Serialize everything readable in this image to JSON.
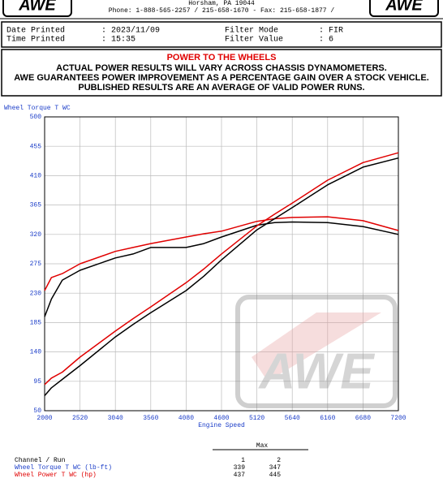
{
  "header": {
    "logo_left": "AWE",
    "logo_right": "AWE",
    "address": "Horsham, PA  19044",
    "contact": "Phone: 1-888-565-2257 / 215-658-1670 - Fax: 215-658-1877 /"
  },
  "info": {
    "date_label": "Date Printed",
    "date_value": "2023/11/09",
    "time_label": "Time Printed",
    "time_value": "15:35",
    "filter_mode_label": "Filter Mode",
    "filter_mode_value": "FIR",
    "filter_value_label": "Filter Value",
    "filter_value_value": "6",
    "separator": ":"
  },
  "notice": {
    "title": "POWER TO THE WHEELS",
    "lines": [
      "ACTUAL POWER RESULTS WILL VARY ACROSS CHASSIS DYNAMOMETERS.",
      "AWE GUARANTEES POWER IMPROVEMENT AS A PERCENTAGE GAIN OVER A STOCK VEHICLE.",
      "PUBLISHED RESULTS ARE AN AVERAGE OF VALID POWER RUNS."
    ]
  },
  "chart_data": {
    "type": "line",
    "y_label": "Wheel Torque T WC",
    "x_label": "Engine Speed",
    "watermark": "AWE",
    "grid": true,
    "x": [
      2000,
      2100,
      2260,
      2520,
      3040,
      3300,
      3560,
      4080,
      4340,
      4600,
      5120,
      5380,
      5640,
      6160,
      6680,
      7200
    ],
    "xlim": [
      2000,
      7200
    ],
    "xticks": [
      2000,
      2520,
      3040,
      3560,
      4080,
      4600,
      5120,
      5640,
      6160,
      6680,
      7200
    ],
    "ylim": [
      50,
      500
    ],
    "yticks": [
      50,
      95,
      140,
      185,
      230,
      275,
      320,
      365,
      410,
      455,
      500
    ],
    "series": [
      {
        "color": "#000000",
        "values": [
          194,
          221,
          250,
          265,
          284,
          290,
          300,
          300,
          306,
          316,
          334,
          338,
          339,
          338,
          332,
          320
        ]
      },
      {
        "color": "#e00000",
        "values": [
          234,
          254,
          260,
          275,
          294,
          300,
          306,
          316,
          321,
          325,
          340,
          344,
          346,
          347,
          341,
          326
        ]
      },
      {
        "color": "#000000",
        "values": [
          73,
          85,
          98,
          119,
          163,
          182,
          200,
          234,
          256,
          281,
          327,
          344,
          361,
          396,
          423,
          437
        ]
      },
      {
        "color": "#e00000",
        "values": [
          90,
          100,
          109,
          132,
          172,
          191,
          209,
          246,
          267,
          290,
          333,
          351,
          368,
          403,
          430,
          445
        ]
      }
    ]
  },
  "max_table": {
    "heading": "Max",
    "header": [
      "Channel / Run",
      "1",
      "2"
    ],
    "rows": [
      [
        "Wheel Torque T WC (lb-ft)",
        "339",
        "347"
      ],
      [
        "Wheel Power T WC (hp)",
        "437",
        "445"
      ]
    ]
  }
}
